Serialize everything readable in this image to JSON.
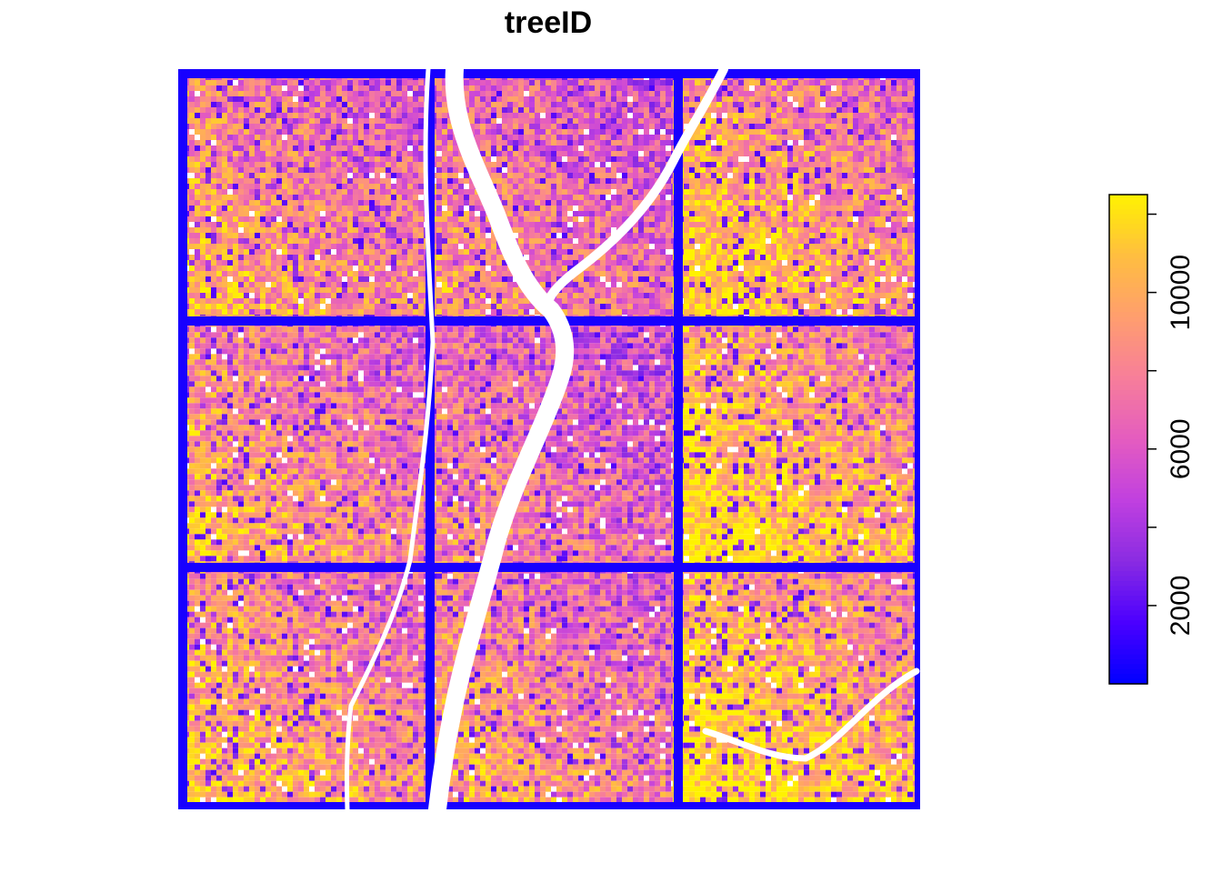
{
  "chart_data": {
    "type": "heatmap",
    "title": "treeID",
    "value_range": [
      0,
      12500
    ],
    "colorbar": {
      "ticks": [
        2000,
        6000,
        10000
      ],
      "minor_ticks": [
        4000,
        8000,
        12000
      ],
      "palette": [
        "#0000FF",
        "#4B00FF",
        "#8A2BE2",
        "#C040E0",
        "#E45CC0",
        "#F77E9A",
        "#FF9E6E",
        "#FFBE40",
        "#FFF200"
      ]
    },
    "tiles": {
      "grid": [
        3,
        3
      ],
      "tile_border_value": 500,
      "approx_mean_treeID": [
        [
          8200,
          7400,
          9300
        ],
        [
          8400,
          7000,
          9900
        ],
        [
          8900,
          8100,
          10300
        ]
      ]
    }
  }
}
